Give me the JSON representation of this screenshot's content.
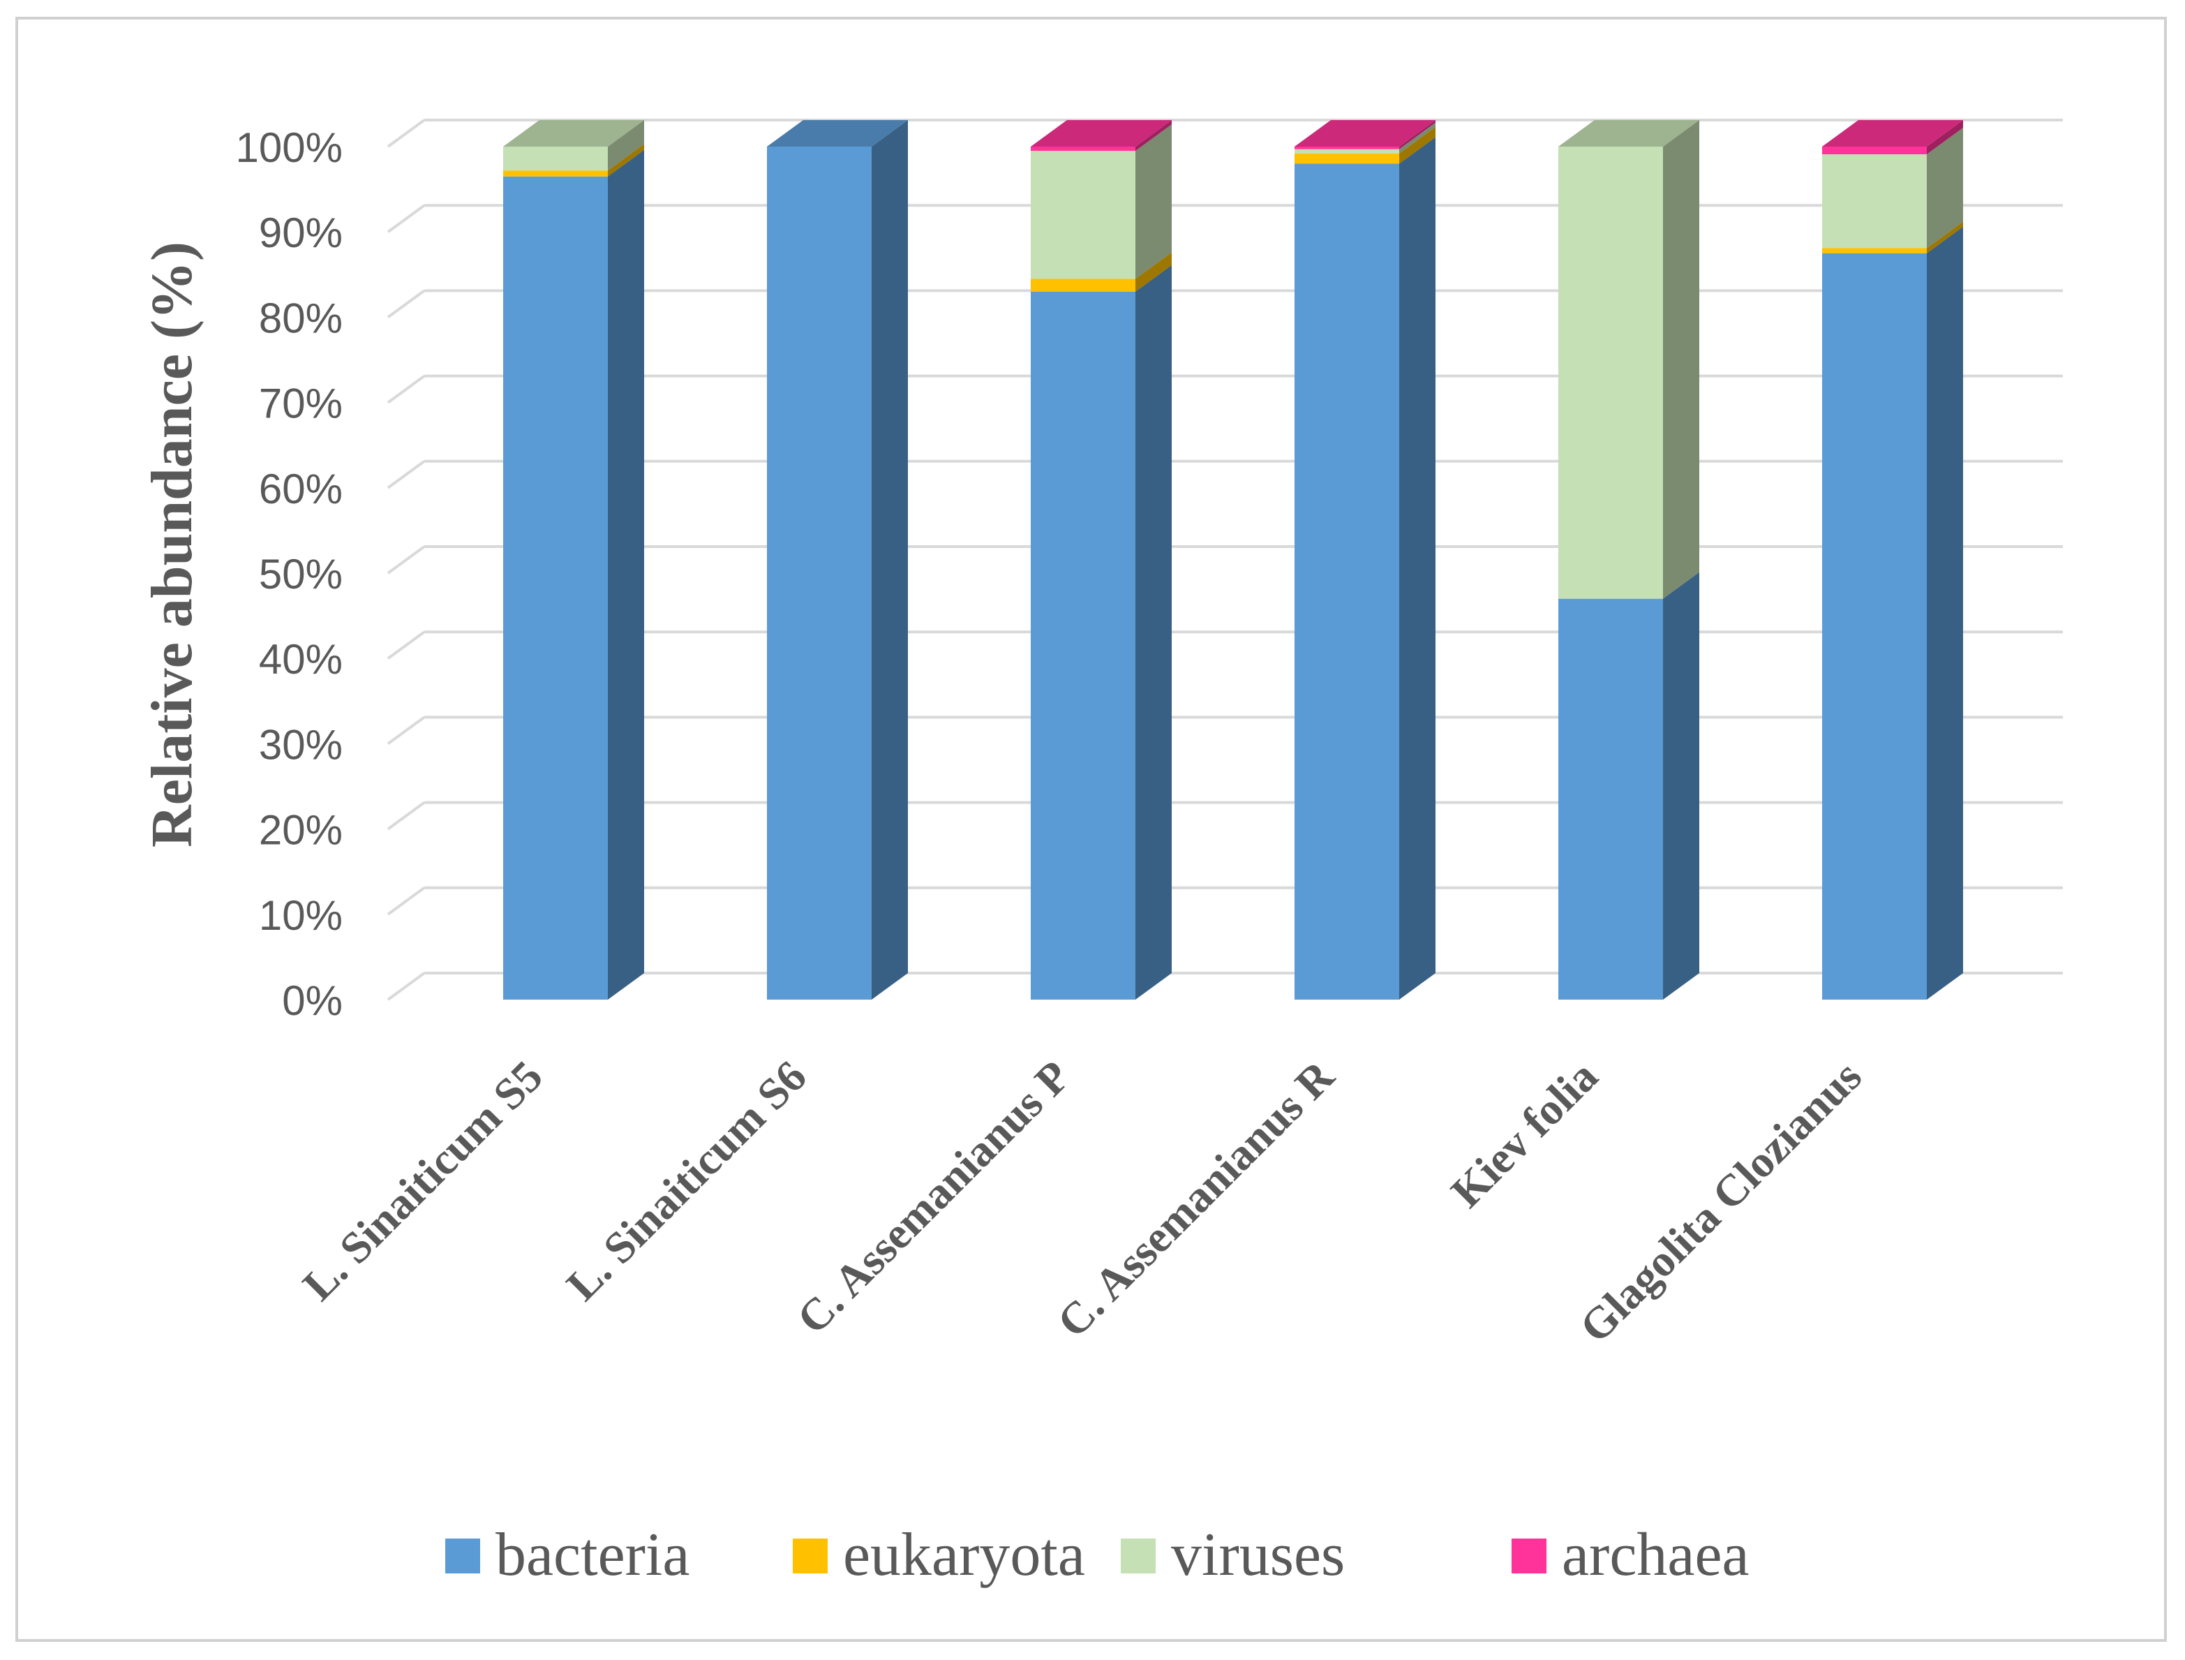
{
  "chart_data": {
    "type": "bar",
    "stacked": true,
    "percent": true,
    "three_d": true,
    "categories": [
      "L. Sinaiticum S5",
      "L. Sinaiticum S6",
      "C. Assemanianus P",
      "C. Assemanianus R",
      "Kiev folia",
      "Glagolita Clozianus"
    ],
    "series": [
      {
        "name": "bacteria",
        "color": "#5b9bd5",
        "values": [
          96.5,
          100,
          83.0,
          98.0,
          47.0,
          87.5
        ]
      },
      {
        "name": "eukaryota",
        "color": "#ffc000",
        "values": [
          0.7,
          0,
          1.5,
          1.2,
          0,
          0.6
        ]
      },
      {
        "name": "viruses",
        "color": "#c5e0b4",
        "values": [
          2.8,
          0,
          15.0,
          0.5,
          53.0,
          11.0
        ]
      },
      {
        "name": "archaea",
        "color": "#ff3399",
        "values": [
          0,
          0,
          0.5,
          0.3,
          0,
          0.9
        ]
      }
    ],
    "yticks": [
      "0%",
      "10%",
      "20%",
      "30%",
      "40%",
      "50%",
      "60%",
      "70%",
      "80%",
      "90%",
      "100%"
    ],
    "ylim": [
      0,
      100
    ],
    "title": "",
    "xlabel": "",
    "ylabel": "Relative abundance (%)",
    "legend": "bottom",
    "grid": true
  }
}
